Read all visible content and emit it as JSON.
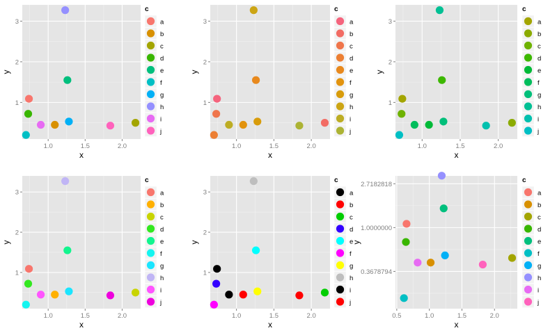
{
  "chart_data": [
    {
      "type": "scatter",
      "xlabel": "x",
      "ylabel": "y",
      "xlim": [
        0.65,
        2.25
      ],
      "ylim": [
        0.1,
        3.4
      ],
      "xticks": [
        1.0,
        1.5,
        2.0
      ],
      "xtick_labels": [
        "1.0",
        "1.5",
        "2.0"
      ],
      "yticks": [
        1,
        2,
        3
      ],
      "ytick_labels": [
        "1",
        "2",
        "3"
      ],
      "legend_title": "c",
      "legend": [
        "a",
        "b",
        "c",
        "d",
        "e",
        "f",
        "g",
        "h",
        "i",
        "j"
      ],
      "colors": [
        "#F8766D",
        "#D89000",
        "#A3A500",
        "#39B600",
        "#00BF7D",
        "#00BFC4",
        "#00B0F6",
        "#9590FF",
        "#E76BF3",
        "#FF62BC"
      ],
      "points": [
        {
          "category": "a",
          "x": 0.74,
          "y": 1.09
        },
        {
          "category": "b",
          "x": 1.09,
          "y": 0.45
        },
        {
          "category": "c",
          "x": 2.18,
          "y": 0.5
        },
        {
          "category": "d",
          "x": 0.73,
          "y": 0.72
        },
        {
          "category": "e",
          "x": 1.26,
          "y": 1.55
        },
        {
          "category": "f",
          "x": 0.7,
          "y": 0.2
        },
        {
          "category": "g",
          "x": 1.28,
          "y": 0.53
        },
        {
          "category": "h",
          "x": 1.23,
          "y": 3.27
        },
        {
          "category": "i",
          "x": 0.9,
          "y": 0.45
        },
        {
          "category": "j",
          "x": 1.84,
          "y": 0.43
        }
      ]
    },
    {
      "type": "scatter",
      "xlabel": "x",
      "ylabel": "y",
      "xlim": [
        0.65,
        2.25
      ],
      "ylim": [
        0.1,
        3.4
      ],
      "xticks": [
        1.0,
        1.5,
        2.0
      ],
      "xtick_labels": [
        "1.0",
        "1.5",
        "2.0"
      ],
      "yticks": [
        1,
        2,
        3
      ],
      "ytick_labels": [
        "1",
        "2",
        "3"
      ],
      "legend_title": "c",
      "legend": [
        "a",
        "b",
        "c",
        "d",
        "e",
        "f",
        "g",
        "h",
        "i",
        "j"
      ],
      "colors": [
        "#F5647D",
        "#F26C64",
        "#EF754B",
        "#EC7F33",
        "#E8891D",
        "#E2930E",
        "#D89C0B",
        "#CCA514",
        "#BDAD24",
        "#ACB334"
      ],
      "points": [
        {
          "category": "a",
          "x": 0.74,
          "y": 1.09
        },
        {
          "category": "b",
          "x": 2.18,
          "y": 0.5
        },
        {
          "category": "c",
          "x": 0.73,
          "y": 0.72
        },
        {
          "category": "d",
          "x": 0.7,
          "y": 0.2
        },
        {
          "category": "e",
          "x": 1.26,
          "y": 1.55
        },
        {
          "category": "f",
          "x": 1.09,
          "y": 0.45
        },
        {
          "category": "g",
          "x": 1.28,
          "y": 0.53
        },
        {
          "category": "h",
          "x": 1.23,
          "y": 3.27
        },
        {
          "category": "i",
          "x": 0.9,
          "y": 0.45
        },
        {
          "category": "j",
          "x": 1.84,
          "y": 0.43
        }
      ]
    },
    {
      "type": "scatter",
      "xlabel": "x",
      "ylabel": "y",
      "xlim": [
        0.65,
        2.25
      ],
      "ylim": [
        0.1,
        3.4
      ],
      "xticks": [
        1.0,
        1.5,
        2.0
      ],
      "xtick_labels": [
        "1.0",
        "1.5",
        "2.0"
      ],
      "yticks": [
        1,
        2,
        3
      ],
      "ytick_labels": [
        "1",
        "2",
        "3"
      ],
      "legend_title": "c",
      "legend": [
        "a",
        "b",
        "c",
        "d",
        "e",
        "f",
        "g",
        "h",
        "i",
        "j"
      ],
      "colors": [
        "#A3A500",
        "#8BAB00",
        "#6EB200",
        "#3DB800",
        "#00BA38",
        "#00BD5C",
        "#00BF7A",
        "#00C094",
        "#00C0AE",
        "#00BFC4"
      ],
      "points": [
        {
          "category": "a",
          "x": 0.74,
          "y": 1.09
        },
        {
          "category": "b",
          "x": 2.18,
          "y": 0.5
        },
        {
          "category": "c",
          "x": 0.73,
          "y": 0.72
        },
        {
          "category": "d",
          "x": 1.26,
          "y": 1.55
        },
        {
          "category": "e",
          "x": 1.09,
          "y": 0.45
        },
        {
          "category": "f",
          "x": 0.9,
          "y": 0.45
        },
        {
          "category": "g",
          "x": 1.28,
          "y": 0.53
        },
        {
          "category": "h",
          "x": 1.23,
          "y": 3.27
        },
        {
          "category": "i",
          "x": 1.84,
          "y": 0.43
        },
        {
          "category": "j",
          "x": 0.7,
          "y": 0.2
        }
      ]
    },
    {
      "type": "scatter",
      "xlabel": "x",
      "ylabel": "y",
      "xlim": [
        0.65,
        2.25
      ],
      "ylim": [
        0.1,
        3.4
      ],
      "xticks": [
        1.0,
        1.5,
        2.0
      ],
      "xtick_labels": [
        "1.0",
        "1.5",
        "2.0"
      ],
      "yticks": [
        1,
        2,
        3
      ],
      "ytick_labels": [
        "1",
        "2",
        "3"
      ],
      "legend_title": "c",
      "legend": [
        "a",
        "b",
        "c",
        "d",
        "e",
        "f",
        "g",
        "h",
        "i",
        "j"
      ],
      "colors": [
        "#F8766D",
        "#FFB000",
        "#C8D400",
        "#33E81F",
        "#12F58E",
        "#14F5F0",
        "#1AE5FF",
        "#C0B5F5",
        "#FF55FF",
        "#EE00DD"
      ],
      "points": [
        {
          "category": "a",
          "x": 0.74,
          "y": 1.09
        },
        {
          "category": "b",
          "x": 1.09,
          "y": 0.45
        },
        {
          "category": "c",
          "x": 2.18,
          "y": 0.5
        },
        {
          "category": "d",
          "x": 0.73,
          "y": 0.72
        },
        {
          "category": "e",
          "x": 1.26,
          "y": 1.55
        },
        {
          "category": "f",
          "x": 0.7,
          "y": 0.2
        },
        {
          "category": "g",
          "x": 1.28,
          "y": 0.53
        },
        {
          "category": "h",
          "x": 1.23,
          "y": 3.27
        },
        {
          "category": "i",
          "x": 0.9,
          "y": 0.45
        },
        {
          "category": "j",
          "x": 1.84,
          "y": 0.43
        }
      ]
    },
    {
      "type": "scatter",
      "xlabel": "x",
      "ylabel": "y",
      "xlim": [
        0.65,
        2.25
      ],
      "ylim": [
        0.1,
        3.4
      ],
      "xticks": [
        1.0,
        1.5,
        2.0
      ],
      "xtick_labels": [
        "1.0",
        "1.5",
        "2.0"
      ],
      "yticks": [
        1,
        2,
        3
      ],
      "ytick_labels": [
        "1",
        "2",
        "3"
      ],
      "legend_title": "c",
      "legend": [
        "a",
        "b",
        "c",
        "d",
        "e",
        "f",
        "g",
        "h",
        "i",
        "j"
      ],
      "colors": [
        "#000000",
        "#FF0000",
        "#00CD00",
        "#3300FF",
        "#00FFFF",
        "#FF00FF",
        "#FFFF00",
        "#BEBEBE",
        "#000000",
        "#FF0000"
      ],
      "points": [
        {
          "category": "a",
          "x": 0.74,
          "y": 1.09
        },
        {
          "category": "b",
          "x": 1.09,
          "y": 0.45
        },
        {
          "category": "c",
          "x": 2.18,
          "y": 0.5
        },
        {
          "category": "d",
          "x": 0.73,
          "y": 0.72
        },
        {
          "category": "e",
          "x": 1.26,
          "y": 1.55
        },
        {
          "category": "f",
          "x": 0.7,
          "y": 0.2
        },
        {
          "category": "g",
          "x": 1.28,
          "y": 0.53
        },
        {
          "category": "h",
          "x": 1.23,
          "y": 3.27
        },
        {
          "category": "i",
          "x": 0.9,
          "y": 0.45
        },
        {
          "category": "j",
          "x": 1.84,
          "y": 0.43
        }
      ]
    },
    {
      "type": "scatter",
      "scale": "log",
      "xlabel": "x",
      "ylabel": "y",
      "xlim": [
        0.48,
        2.35
      ],
      "ylim_log": [
        -1.85,
        1.18
      ],
      "xticks": [
        0.5,
        1.0,
        1.5,
        2.0
      ],
      "xtick_labels": [
        "0.5",
        "1.0",
        "1.5",
        "2.0"
      ],
      "yticks_log": [
        -1,
        0,
        1
      ],
      "ytick_labels": [
        "0.3678794",
        "1.0000000",
        "2.7182818"
      ],
      "legend_title": "c",
      "legend": [
        "a",
        "b",
        "c",
        "d",
        "e",
        "f",
        "g",
        "h",
        "i",
        "j"
      ],
      "colors": [
        "#F8766D",
        "#D89000",
        "#A3A500",
        "#39B600",
        "#00BF7D",
        "#00BFC4",
        "#00B0F6",
        "#9590FF",
        "#E76BF3",
        "#FF62BC"
      ],
      "points": [
        {
          "category": "a",
          "x": 0.65,
          "y": 1.09
        },
        {
          "category": "b",
          "x": 1.02,
          "y": 0.45
        },
        {
          "category": "c",
          "x": 2.27,
          "y": 0.5
        },
        {
          "category": "d",
          "x": 0.64,
          "y": 0.72
        },
        {
          "category": "e",
          "x": 1.22,
          "y": 1.55
        },
        {
          "category": "f",
          "x": 0.61,
          "y": 0.2
        },
        {
          "category": "g",
          "x": 1.24,
          "y": 0.53
        },
        {
          "category": "h",
          "x": 1.19,
          "y": 3.27
        },
        {
          "category": "i",
          "x": 0.82,
          "y": 0.45
        },
        {
          "category": "j",
          "x": 1.82,
          "y": 0.43
        }
      ]
    }
  ]
}
